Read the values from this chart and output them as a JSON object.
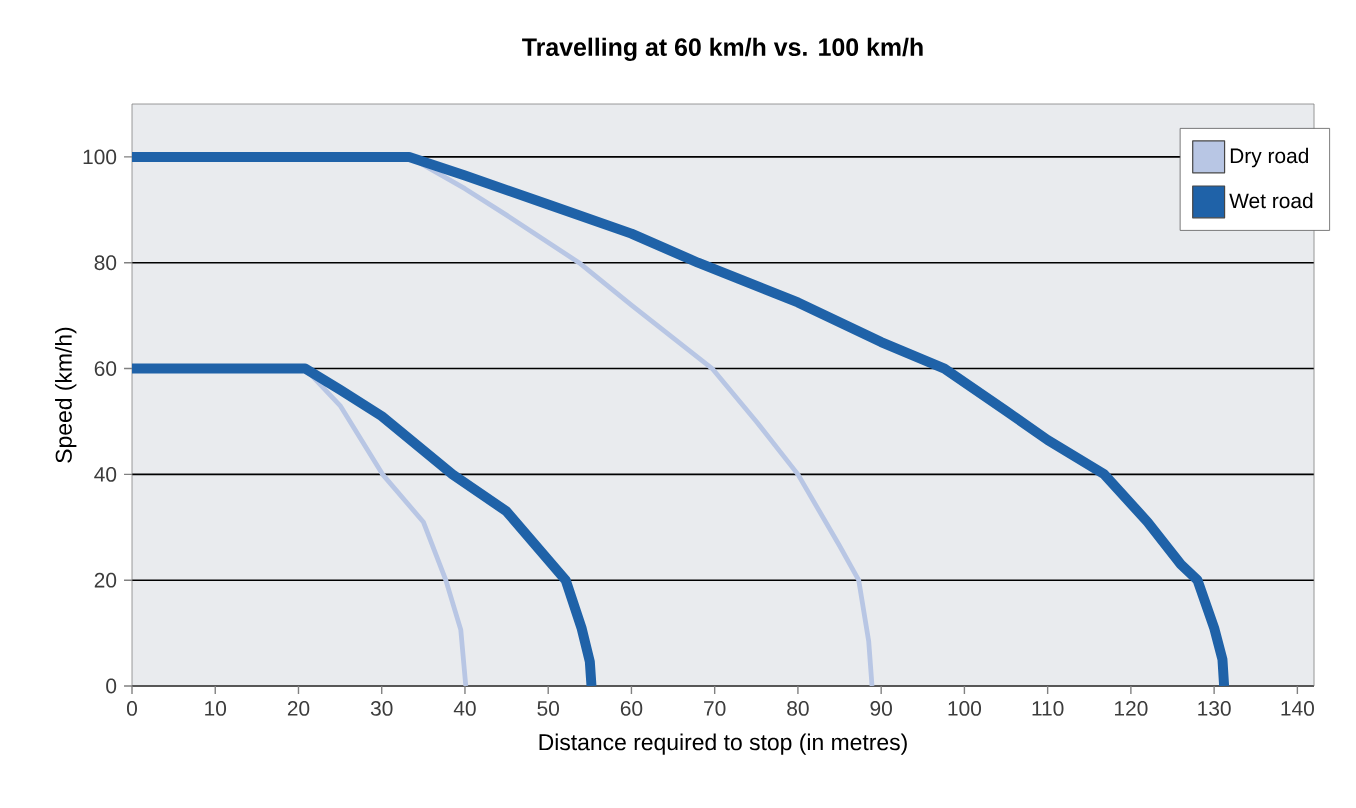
{
  "chart_data": {
    "type": "line",
    "title": "Travelling at 60 km/h vs. 100 km/h",
    "xlabel": "Distance required to stop (in metres)",
    "ylabel": "Speed (km/h)",
    "xlim": [
      0,
      142
    ],
    "ylim": [
      0,
      110
    ],
    "xticks": [
      0,
      10,
      20,
      30,
      40,
      50,
      60,
      70,
      80,
      90,
      100,
      110,
      120,
      130,
      140
    ],
    "yticks": [
      0,
      20,
      40,
      60,
      80,
      100
    ],
    "grid": "y",
    "legend": "top right",
    "line_style": "solid",
    "series": [
      {
        "name": "Dry road",
        "color": "#b8c6e4",
        "x": [
          0,
          20.8,
          25,
          30.1,
          35,
          37.7,
          39.5,
          40.1
        ],
        "values": [
          60,
          60,
          53,
          40,
          31,
          20,
          10.6,
          0
        ]
      },
      {
        "color": "#b8c6e4",
        "x": [
          0,
          33.3,
          40,
          45,
          53.7,
          60,
          69.7,
          75,
          80,
          85,
          87.3,
          88.5,
          88.9
        ],
        "values": [
          100,
          100,
          94,
          89,
          80,
          72,
          60,
          50,
          40,
          26.5,
          20,
          8.5,
          0
        ]
      },
      {
        "name": "Wet road",
        "color": "#1f62a8",
        "x": [
          0,
          20.8,
          25,
          30,
          38.5,
          45,
          52.1,
          54,
          55,
          55.2
        ],
        "values": [
          60,
          60,
          56,
          51,
          40,
          33,
          20,
          11,
          4.6,
          0
        ]
      },
      {
        "color": "#1f62a8",
        "x": [
          0,
          33.3,
          40,
          50,
          60,
          68,
          80,
          90,
          97.6,
          105,
          110,
          116.8,
          122,
          126,
          128,
          130,
          131,
          131.2
        ],
        "values": [
          100,
          100,
          96.5,
          91,
          85.5,
          80,
          72.5,
          65,
          60,
          52,
          46.5,
          40,
          31,
          23,
          20,
          11,
          5,
          0
        ]
      }
    ]
  }
}
